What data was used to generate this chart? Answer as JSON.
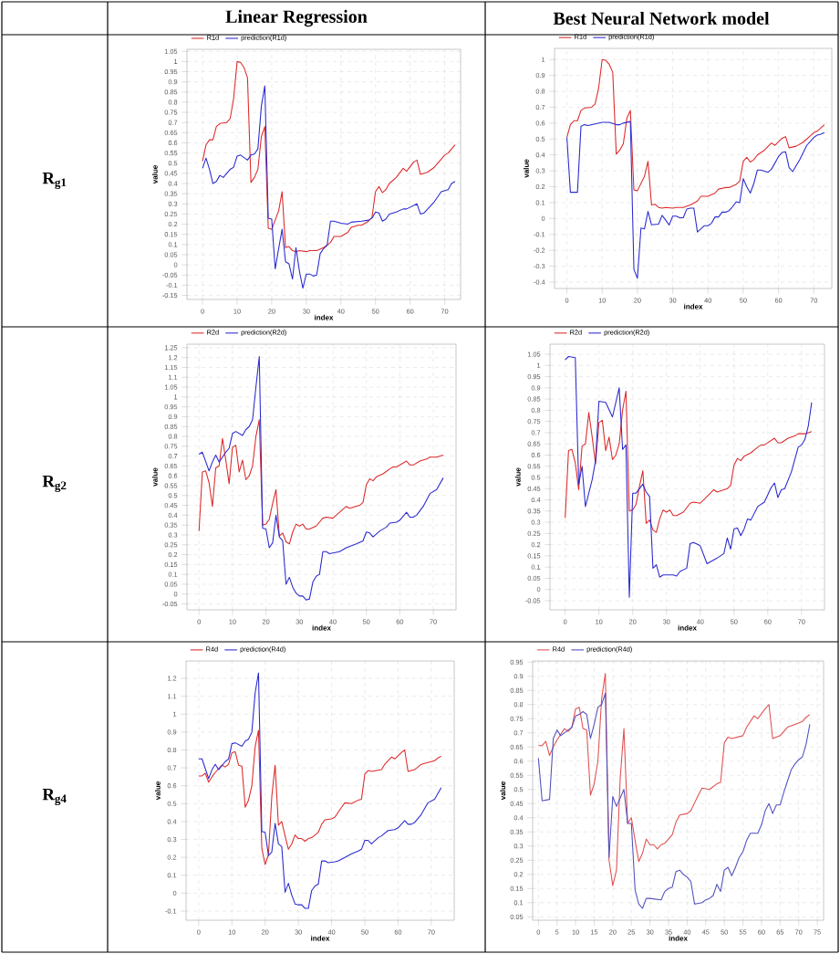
{
  "chart_data": [
    {
      "type": "line",
      "title": "Linear Regression",
      "annotations": [
        "**R$_{g1}$**"
      ],
      "xlabel": "index",
      "ylabel": "value",
      "xlim": [
        -4.5,
        74.6
      ],
      "ylim": [
        -0.17,
        1.06
      ],
      "xticks": [
        0,
        10,
        20,
        30,
        40,
        50,
        60,
        70
      ],
      "yticks": [
        -0.15,
        -0.1,
        -0.05,
        0,
        0.05,
        0.1,
        0.15,
        0.2,
        0.25,
        0.3,
        0.35,
        0.4,
        0.45,
        0.5,
        0.55,
        0.6,
        0.65,
        0.7,
        0.75,
        0.8,
        0.85,
        0.9,
        0.95,
        1,
        1.05
      ],
      "grid": true,
      "legend": "top left",
      "series": [
        {
          "name": "R1d",
          "color": "#dd2a2a",
          "x": [
            0,
            1,
            2,
            3,
            4,
            5,
            7,
            8,
            9,
            10,
            11,
            12,
            13,
            14,
            15,
            16,
            17,
            18,
            19,
            20,
            21,
            22,
            23,
            24,
            25,
            26,
            27,
            28,
            30,
            31,
            33,
            35,
            37,
            38,
            40,
            42,
            43,
            45,
            46,
            48,
            49,
            50,
            51,
            52,
            53,
            54,
            56,
            58,
            59,
            61,
            62,
            63,
            65,
            67,
            69,
            70,
            71,
            73
          ],
          "values": [
            0.51,
            0.59,
            0.615,
            0.615,
            0.68,
            0.695,
            0.7,
            0.72,
            0.82,
            1.0,
            0.995,
            0.97,
            0.92,
            0.405,
            0.43,
            0.47,
            0.63,
            0.68,
            0.18,
            0.175,
            0.22,
            0.265,
            0.36,
            0.085,
            0.09,
            0.07,
            0.065,
            0.07,
            0.065,
            0.07,
            0.07,
            0.085,
            0.11,
            0.14,
            0.14,
            0.16,
            0.185,
            0.195,
            0.195,
            0.215,
            0.235,
            0.36,
            0.385,
            0.355,
            0.37,
            0.4,
            0.43,
            0.475,
            0.46,
            0.505,
            0.515,
            0.445,
            0.455,
            0.48,
            0.52,
            0.54,
            0.55,
            0.59
          ]
        },
        {
          "name": "prediction(R1d)",
          "color": "#2a2ad0",
          "x": [
            0,
            1,
            2,
            3,
            4,
            5,
            6,
            8,
            9,
            10,
            11,
            13,
            14,
            15,
            16,
            17,
            18,
            19,
            20,
            21,
            22,
            23,
            24,
            25,
            26,
            27,
            28,
            29,
            30,
            31,
            32,
            33,
            34,
            35,
            36,
            37,
            38,
            40,
            42,
            43,
            46,
            48,
            49,
            50,
            51,
            52,
            53,
            54,
            56,
            58,
            59,
            62,
            63,
            64,
            67,
            69,
            71,
            72,
            73
          ],
          "values": [
            0.475,
            0.525,
            0.47,
            0.4,
            0.41,
            0.44,
            0.43,
            0.47,
            0.48,
            0.535,
            0.54,
            0.515,
            0.54,
            0.545,
            0.57,
            0.78,
            0.88,
            0.23,
            0.225,
            -0.02,
            0.08,
            0.175,
            0.015,
            0.005,
            -0.07,
            0.085,
            -0.03,
            -0.115,
            -0.045,
            -0.045,
            -0.055,
            -0.05,
            0.055,
            0.08,
            0.095,
            0.215,
            0.215,
            0.205,
            0.2,
            0.21,
            0.215,
            0.22,
            0.23,
            0.26,
            0.255,
            0.215,
            0.225,
            0.25,
            0.26,
            0.275,
            0.275,
            0.3,
            0.25,
            0.255,
            0.31,
            0.36,
            0.37,
            0.4,
            0.41
          ]
        }
      ]
    },
    {
      "type": "line",
      "title": "Best Neural Network model",
      "xlabel": "index",
      "ylabel": "value",
      "xlim": [
        -3.5,
        75.1
      ],
      "ylim": [
        -0.44,
        1.07
      ],
      "xticks": [
        0,
        10,
        20,
        30,
        40,
        50,
        60,
        70
      ],
      "yticks": [
        -0.4,
        -0.3,
        -0.2,
        -0.1,
        0,
        0.1,
        0.2,
        0.3,
        0.4,
        0.5,
        0.6,
        0.7,
        0.8,
        0.9,
        1
      ],
      "grid": true,
      "legend": "top left",
      "series": [
        {
          "name": "R1d",
          "color": "#dd2a2a",
          "x": [
            0,
            1,
            2,
            3,
            4,
            5,
            7,
            8,
            9,
            10,
            11,
            12,
            13,
            14,
            15,
            16,
            17,
            18,
            19,
            20,
            21,
            22,
            23,
            24,
            25,
            26,
            27,
            28,
            30,
            31,
            33,
            35,
            37,
            38,
            40,
            42,
            43,
            45,
            46,
            48,
            49,
            50,
            51,
            52,
            53,
            54,
            56,
            58,
            59,
            61,
            62,
            63,
            65,
            67,
            69,
            70,
            71,
            73
          ],
          "values": [
            0.51,
            0.59,
            0.615,
            0.615,
            0.68,
            0.695,
            0.7,
            0.72,
            0.82,
            1.0,
            0.995,
            0.97,
            0.92,
            0.405,
            0.43,
            0.47,
            0.63,
            0.68,
            0.18,
            0.175,
            0.22,
            0.265,
            0.36,
            0.085,
            0.09,
            0.07,
            0.065,
            0.07,
            0.065,
            0.07,
            0.07,
            0.085,
            0.11,
            0.14,
            0.14,
            0.16,
            0.185,
            0.195,
            0.195,
            0.215,
            0.235,
            0.36,
            0.385,
            0.355,
            0.37,
            0.4,
            0.43,
            0.475,
            0.46,
            0.505,
            0.515,
            0.445,
            0.455,
            0.48,
            0.52,
            0.54,
            0.55,
            0.59
          ]
        },
        {
          "name": "prediction(R1d)",
          "color": "#2a2ad0",
          "x": [
            0,
            1,
            3,
            4,
            5,
            6,
            8,
            10,
            12,
            14,
            15,
            16,
            18,
            19,
            20,
            21,
            22,
            23,
            24,
            26,
            27,
            29,
            30,
            31,
            32,
            33,
            34,
            35,
            36,
            37,
            38,
            39,
            40,
            41,
            42,
            43,
            44,
            45,
            46,
            47,
            48,
            49,
            50,
            51,
            52,
            53,
            54,
            55,
            57,
            58,
            60,
            61,
            62,
            63,
            64,
            66,
            68,
            70,
            71,
            72,
            73
          ],
          "values": [
            0.51,
            0.165,
            0.165,
            0.58,
            0.59,
            0.585,
            0.595,
            0.605,
            0.605,
            0.59,
            0.59,
            0.6,
            0.61,
            -0.32,
            -0.375,
            -0.06,
            -0.065,
            0.045,
            -0.04,
            -0.035,
            0.02,
            -0.04,
            0.015,
            0.015,
            0.005,
            0.005,
            0.06,
            0.065,
            0.065,
            -0.085,
            -0.065,
            -0.045,
            -0.045,
            -0.03,
            0.01,
            0.01,
            0.04,
            0.04,
            0.05,
            0.075,
            0.105,
            0.1,
            0.25,
            0.2,
            0.16,
            0.22,
            0.305,
            0.305,
            0.29,
            0.31,
            0.39,
            0.415,
            0.42,
            0.32,
            0.295,
            0.37,
            0.46,
            0.51,
            0.525,
            0.53,
            0.54
          ]
        }
      ]
    },
    {
      "type": "line",
      "annotations": [
        "**R$_{g2}$**"
      ],
      "xlabel": "index",
      "ylabel": "value",
      "xlim": [
        -3.6,
        76.8
      ],
      "ylim": [
        -0.08,
        1.268
      ],
      "xticks": [
        0,
        10,
        20,
        30,
        40,
        50,
        60,
        70
      ],
      "yticks": [
        -0.05,
        0,
        0.05,
        0.1,
        0.15,
        0.2,
        0.25,
        0.3,
        0.35,
        0.4,
        0.45,
        0.5,
        0.55,
        0.6,
        0.65,
        0.7,
        0.75,
        0.8,
        0.85,
        0.9,
        0.95,
        1,
        1.05,
        1.1,
        1.15,
        1.2,
        1.25
      ],
      "grid": true,
      "legend": "top left",
      "series": [
        {
          "name": "R2d",
          "color": "#dd2a2a",
          "x": [
            0,
            1,
            2,
            3,
            4,
            5,
            6,
            7,
            8,
            9,
            10,
            11,
            12,
            13,
            14,
            15,
            16,
            17,
            18,
            19,
            20,
            21,
            22,
            23,
            24,
            25,
            26,
            27,
            28,
            29,
            30,
            31,
            32,
            33,
            35,
            37,
            38,
            40,
            42,
            44,
            45,
            48,
            49,
            50,
            51,
            52,
            53,
            55,
            57,
            58,
            59,
            62,
            63,
            64,
            66,
            68,
            69,
            71,
            73
          ],
          "values": [
            0.32,
            0.62,
            0.625,
            0.565,
            0.445,
            0.64,
            0.65,
            0.79,
            0.68,
            0.56,
            0.745,
            0.755,
            0.62,
            0.68,
            0.58,
            0.6,
            0.65,
            0.8,
            0.885,
            0.35,
            0.355,
            0.38,
            0.46,
            0.53,
            0.295,
            0.31,
            0.265,
            0.255,
            0.315,
            0.355,
            0.345,
            0.355,
            0.33,
            0.33,
            0.345,
            0.385,
            0.39,
            0.385,
            0.415,
            0.445,
            0.435,
            0.45,
            0.465,
            0.555,
            0.585,
            0.575,
            0.595,
            0.61,
            0.635,
            0.645,
            0.645,
            0.675,
            0.655,
            0.655,
            0.675,
            0.685,
            0.695,
            0.695,
            0.705
          ]
        },
        {
          "name": "prediction(R2d)",
          "color": "#2a2ad0",
          "x": [
            0,
            1,
            3,
            4,
            5,
            6,
            8,
            9,
            10,
            11,
            13,
            14,
            15,
            16,
            17,
            18,
            19,
            20,
            21,
            22,
            23,
            24,
            25,
            26,
            27,
            28,
            29,
            30,
            31,
            32,
            33,
            34,
            35,
            36,
            37,
            38,
            39,
            42,
            44,
            47,
            49,
            50,
            51,
            52,
            54,
            56,
            57,
            59,
            60,
            62,
            63,
            64,
            65,
            67,
            69,
            71,
            73
          ],
          "values": [
            0.71,
            0.72,
            0.625,
            0.67,
            0.705,
            0.67,
            0.72,
            0.74,
            0.815,
            0.825,
            0.805,
            0.835,
            0.85,
            0.885,
            1.05,
            1.205,
            0.335,
            0.33,
            0.235,
            0.26,
            0.4,
            0.29,
            0.27,
            0.05,
            0.085,
            0.035,
            0.005,
            -0.01,
            -0.01,
            -0.03,
            -0.025,
            0.06,
            0.09,
            0.1,
            0.215,
            0.215,
            0.205,
            0.215,
            0.235,
            0.255,
            0.27,
            0.315,
            0.31,
            0.29,
            0.32,
            0.34,
            0.36,
            0.365,
            0.375,
            0.415,
            0.39,
            0.39,
            0.4,
            0.445,
            0.51,
            0.53,
            0.59
          ]
        }
      ]
    },
    {
      "type": "line",
      "xlabel": "index",
      "ylabel": "value",
      "xlim": [
        -4.5,
        76.8
      ],
      "ylim": [
        -0.091,
        1.095
      ],
      "xticks": [
        0,
        10,
        20,
        30,
        40,
        50,
        60,
        70
      ],
      "yticks": [
        -0.05,
        0,
        0.05,
        0.1,
        0.15,
        0.2,
        0.25,
        0.3,
        0.35,
        0.4,
        0.45,
        0.5,
        0.55,
        0.6,
        0.65,
        0.7,
        0.75,
        0.8,
        0.85,
        0.9,
        0.95,
        1,
        1.05
      ],
      "grid": true,
      "legend": "top left",
      "series": [
        {
          "name": "R2d",
          "color": "#dd2a2a",
          "x": [
            0,
            1,
            2,
            3,
            4,
            5,
            6,
            7,
            8,
            9,
            10,
            11,
            12,
            13,
            14,
            15,
            16,
            17,
            18,
            19,
            20,
            21,
            22,
            23,
            24,
            25,
            26,
            27,
            28,
            29,
            30,
            31,
            32,
            33,
            35,
            37,
            38,
            40,
            42,
            44,
            45,
            48,
            49,
            50,
            51,
            52,
            53,
            55,
            57,
            58,
            59,
            62,
            63,
            64,
            66,
            68,
            69,
            71,
            73
          ],
          "values": [
            0.32,
            0.62,
            0.625,
            0.565,
            0.445,
            0.64,
            0.65,
            0.79,
            0.68,
            0.56,
            0.745,
            0.755,
            0.62,
            0.68,
            0.58,
            0.6,
            0.65,
            0.8,
            0.885,
            0.35,
            0.355,
            0.38,
            0.46,
            0.53,
            0.295,
            0.31,
            0.265,
            0.255,
            0.315,
            0.355,
            0.345,
            0.355,
            0.33,
            0.33,
            0.345,
            0.385,
            0.39,
            0.385,
            0.415,
            0.445,
            0.435,
            0.45,
            0.465,
            0.555,
            0.585,
            0.575,
            0.595,
            0.61,
            0.635,
            0.645,
            0.645,
            0.675,
            0.655,
            0.655,
            0.675,
            0.685,
            0.695,
            0.695,
            0.705
          ]
        },
        {
          "name": "prediction(R2d)",
          "color": "#2a2ad0",
          "x": [
            0,
            1,
            3,
            4,
            5,
            6,
            8,
            9,
            10,
            12,
            14,
            16,
            17,
            18,
            19,
            20,
            21,
            23,
            24,
            25,
            26,
            27,
            28,
            29,
            32,
            33,
            34,
            36,
            37,
            38,
            40,
            42,
            45,
            47,
            48,
            49,
            50,
            51,
            52,
            53,
            54,
            55,
            57,
            59,
            61,
            62,
            63,
            64,
            65,
            67,
            69,
            70,
            71,
            72,
            73
          ],
          "values": [
            1.025,
            1.04,
            1.035,
            0.47,
            0.55,
            0.37,
            0.49,
            0.575,
            0.84,
            0.835,
            0.77,
            0.9,
            0.625,
            0.645,
            -0.035,
            0.43,
            0.43,
            0.47,
            0.435,
            0.415,
            0.095,
            0.11,
            0.055,
            0.065,
            0.065,
            0.06,
            0.08,
            0.095,
            0.205,
            0.21,
            0.195,
            0.115,
            0.14,
            0.16,
            0.23,
            0.18,
            0.27,
            0.275,
            0.24,
            0.27,
            0.315,
            0.31,
            0.37,
            0.39,
            0.455,
            0.475,
            0.41,
            0.445,
            0.45,
            0.525,
            0.635,
            0.645,
            0.67,
            0.73,
            0.835
          ]
        }
      ]
    },
    {
      "type": "line",
      "annotations": [
        "**R$_{g4}$**"
      ],
      "xlabel": "index",
      "ylabel": "value",
      "xlim": [
        -3.8,
        76.9
      ],
      "ylim": [
        -0.151,
        1.297
      ],
      "xticks": [
        0,
        10,
        20,
        30,
        40,
        50,
        60,
        70
      ],
      "yticks": [
        -0.1,
        0,
        0.1,
        0.2,
        0.3,
        0.4,
        0.5,
        0.6,
        0.7,
        0.8,
        0.9,
        1,
        1.1,
        1.2
      ],
      "grid": true,
      "legend": "top left",
      "series": [
        {
          "name": "R4d",
          "color": "#dd2a2a",
          "x": [
            0,
            1,
            2,
            3,
            4,
            5,
            7,
            8,
            9,
            10,
            11,
            12,
            13,
            14,
            15,
            16,
            17,
            18,
            19,
            20,
            21,
            22,
            23,
            24,
            25,
            26,
            27,
            28,
            29,
            30,
            31,
            32,
            33,
            34,
            36,
            37,
            38,
            40,
            41,
            43,
            44,
            46,
            48,
            49,
            50,
            51,
            52,
            55,
            56,
            58,
            59,
            61,
            62,
            63,
            65,
            67,
            68,
            70,
            71,
            72,
            73
          ],
          "values": [
            0.655,
            0.655,
            0.67,
            0.62,
            0.65,
            0.675,
            0.715,
            0.705,
            0.72,
            0.785,
            0.79,
            0.715,
            0.71,
            0.48,
            0.52,
            0.6,
            0.82,
            0.91,
            0.25,
            0.16,
            0.215,
            0.54,
            0.715,
            0.38,
            0.4,
            0.32,
            0.245,
            0.275,
            0.325,
            0.305,
            0.305,
            0.29,
            0.305,
            0.31,
            0.34,
            0.385,
            0.41,
            0.415,
            0.425,
            0.48,
            0.505,
            0.5,
            0.52,
            0.525,
            0.665,
            0.685,
            0.68,
            0.69,
            0.72,
            0.76,
            0.75,
            0.785,
            0.8,
            0.68,
            0.69,
            0.72,
            0.725,
            0.735,
            0.74,
            0.755,
            0.765
          ]
        },
        {
          "name": "prediction(R4d)",
          "color": "#2a2ad0",
          "x": [
            0,
            1,
            3,
            4,
            5,
            6,
            8,
            9,
            10,
            11,
            13,
            14,
            15,
            16,
            17,
            18,
            19,
            20,
            21,
            22,
            23,
            24,
            25,
            26,
            27,
            28,
            29,
            30,
            31,
            32,
            33,
            34,
            35,
            36,
            37,
            38,
            39,
            41,
            42,
            44,
            46,
            48,
            49,
            50,
            51,
            52,
            54,
            55,
            57,
            59,
            60,
            62,
            63,
            64,
            65,
            67,
            69,
            71,
            73
          ],
          "values": [
            0.75,
            0.75,
            0.64,
            0.69,
            0.72,
            0.69,
            0.735,
            0.75,
            0.835,
            0.84,
            0.82,
            0.85,
            0.86,
            0.9,
            1.12,
            1.23,
            0.345,
            0.34,
            0.21,
            0.23,
            0.39,
            0.275,
            0.26,
            0.005,
            0.055,
            -0.01,
            -0.06,
            -0.065,
            -0.065,
            -0.085,
            -0.085,
            0.015,
            0.04,
            0.05,
            0.18,
            0.18,
            0.17,
            0.175,
            0.18,
            0.2,
            0.22,
            0.235,
            0.245,
            0.295,
            0.295,
            0.275,
            0.31,
            0.32,
            0.35,
            0.355,
            0.365,
            0.405,
            0.385,
            0.385,
            0.395,
            0.44,
            0.505,
            0.525,
            0.59
          ]
        }
      ]
    },
    {
      "type": "line",
      "xlabel": "index",
      "ylabel": "value",
      "xlim": [
        -1.55,
        76.7
      ],
      "ylim": [
        0.038,
        0.954
      ],
      "xticks": [
        0,
        5,
        10,
        15,
        20,
        25,
        30,
        35,
        40,
        45,
        50,
        55,
        60,
        65,
        70,
        75
      ],
      "yticks": [
        0.05,
        0.1,
        0.15,
        0.2,
        0.25,
        0.3,
        0.35,
        0.4,
        0.45,
        0.5,
        0.55,
        0.6,
        0.65,
        0.7,
        0.75,
        0.8,
        0.85,
        0.9,
        0.95
      ],
      "grid": true,
      "legend": "top left",
      "series": [
        {
          "name": "R4d",
          "color": "#e05050",
          "x": [
            0,
            1,
            2,
            3,
            4,
            5,
            7,
            8,
            9,
            10,
            11,
            12,
            13,
            14,
            15,
            16,
            17,
            18,
            19,
            20,
            21,
            22,
            23,
            24,
            25,
            26,
            27,
            28,
            29,
            30,
            31,
            32,
            33,
            34,
            36,
            37,
            38,
            40,
            41,
            43,
            44,
            46,
            48,
            49,
            50,
            51,
            52,
            55,
            56,
            58,
            59,
            61,
            62,
            63,
            65,
            67,
            68,
            70,
            71,
            72,
            73
          ],
          "values": [
            0.655,
            0.655,
            0.67,
            0.62,
            0.65,
            0.675,
            0.715,
            0.705,
            0.72,
            0.785,
            0.79,
            0.715,
            0.71,
            0.48,
            0.52,
            0.6,
            0.82,
            0.91,
            0.25,
            0.16,
            0.215,
            0.54,
            0.715,
            0.38,
            0.4,
            0.32,
            0.245,
            0.275,
            0.325,
            0.305,
            0.305,
            0.29,
            0.305,
            0.31,
            0.34,
            0.385,
            0.41,
            0.415,
            0.425,
            0.48,
            0.505,
            0.5,
            0.52,
            0.525,
            0.665,
            0.685,
            0.68,
            0.69,
            0.72,
            0.76,
            0.75,
            0.785,
            0.8,
            0.68,
            0.69,
            0.72,
            0.725,
            0.735,
            0.74,
            0.755,
            0.765
          ]
        },
        {
          "name": "prediction(R4d)",
          "color": "#5050c0",
          "x": [
            0,
            1,
            3,
            4,
            5,
            6,
            8,
            9,
            10,
            11,
            12,
            13,
            14,
            15,
            16,
            17,
            18,
            19,
            20,
            21,
            22,
            23,
            24,
            25,
            26,
            27,
            28,
            29,
            30,
            33,
            34,
            35,
            36,
            37,
            38,
            39,
            40,
            41,
            42,
            44,
            45,
            46,
            47,
            48,
            49,
            50,
            51,
            52,
            53,
            54,
            55,
            56,
            57,
            59,
            60,
            61,
            62,
            63,
            64,
            65,
            66,
            67,
            68,
            69,
            70,
            71,
            72,
            73
          ],
          "values": [
            0.61,
            0.46,
            0.465,
            0.68,
            0.71,
            0.69,
            0.71,
            0.72,
            0.76,
            0.765,
            0.775,
            0.765,
            0.68,
            0.73,
            0.79,
            0.8,
            0.84,
            0.26,
            0.475,
            0.44,
            0.47,
            0.5,
            0.38,
            0.38,
            0.145,
            0.095,
            0.08,
            0.115,
            0.115,
            0.11,
            0.14,
            0.15,
            0.155,
            0.21,
            0.215,
            0.2,
            0.19,
            0.175,
            0.095,
            0.1,
            0.11,
            0.115,
            0.125,
            0.165,
            0.14,
            0.215,
            0.225,
            0.195,
            0.225,
            0.26,
            0.28,
            0.32,
            0.345,
            0.345,
            0.375,
            0.425,
            0.45,
            0.415,
            0.445,
            0.445,
            0.49,
            0.53,
            0.57,
            0.59,
            0.605,
            0.615,
            0.66,
            0.73
          ]
        }
      ]
    }
  ]
}
